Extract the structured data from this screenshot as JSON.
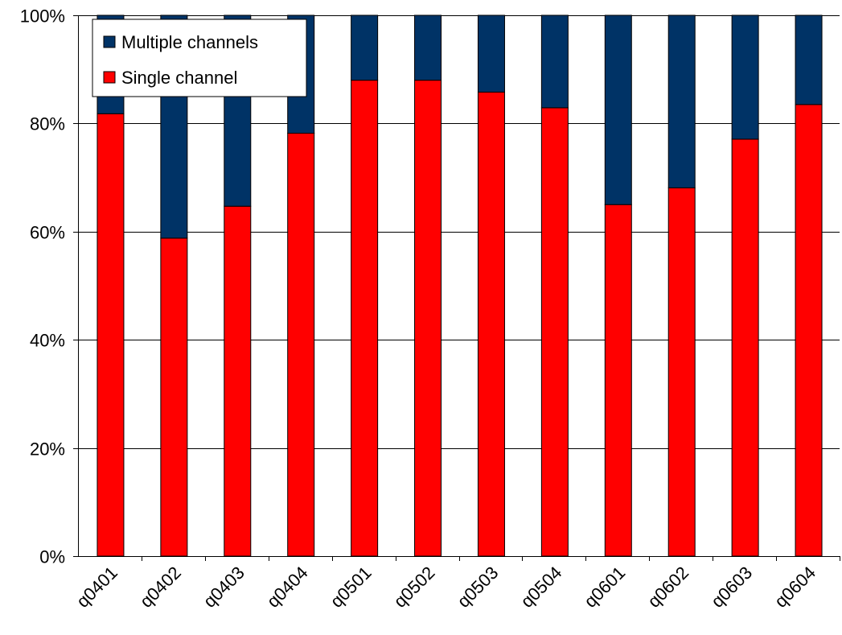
{
  "chart_data": {
    "type": "bar",
    "stacked": true,
    "normalized_percent": true,
    "categories": [
      "q0401",
      "q0402",
      "q0403",
      "q0404",
      "q0501",
      "q0502",
      "q0503",
      "q0504",
      "q0601",
      "q0602",
      "q0603",
      "q0604"
    ],
    "series": [
      {
        "name": "Single channel",
        "color": "#ff0000",
        "values": [
          81.8,
          58.8,
          64.7,
          78.2,
          88.0,
          88.0,
          85.8,
          82.9,
          65.0,
          68.1,
          77.1,
          83.5
        ]
      },
      {
        "name": "Multiple channels",
        "color": "#003366",
        "values": [
          18.2,
          41.2,
          35.3,
          21.8,
          12.0,
          12.0,
          14.2,
          17.1,
          35.0,
          31.9,
          22.9,
          16.5
        ]
      }
    ],
    "title": "",
    "xlabel": "",
    "ylabel": "",
    "ylim": [
      0,
      100
    ],
    "yticks": [
      "0%",
      "20%",
      "40%",
      "60%",
      "80%",
      "100%"
    ],
    "grid": true,
    "legend": {
      "position": "top-left",
      "entries": [
        "Multiple channels",
        "Single channel"
      ]
    }
  }
}
